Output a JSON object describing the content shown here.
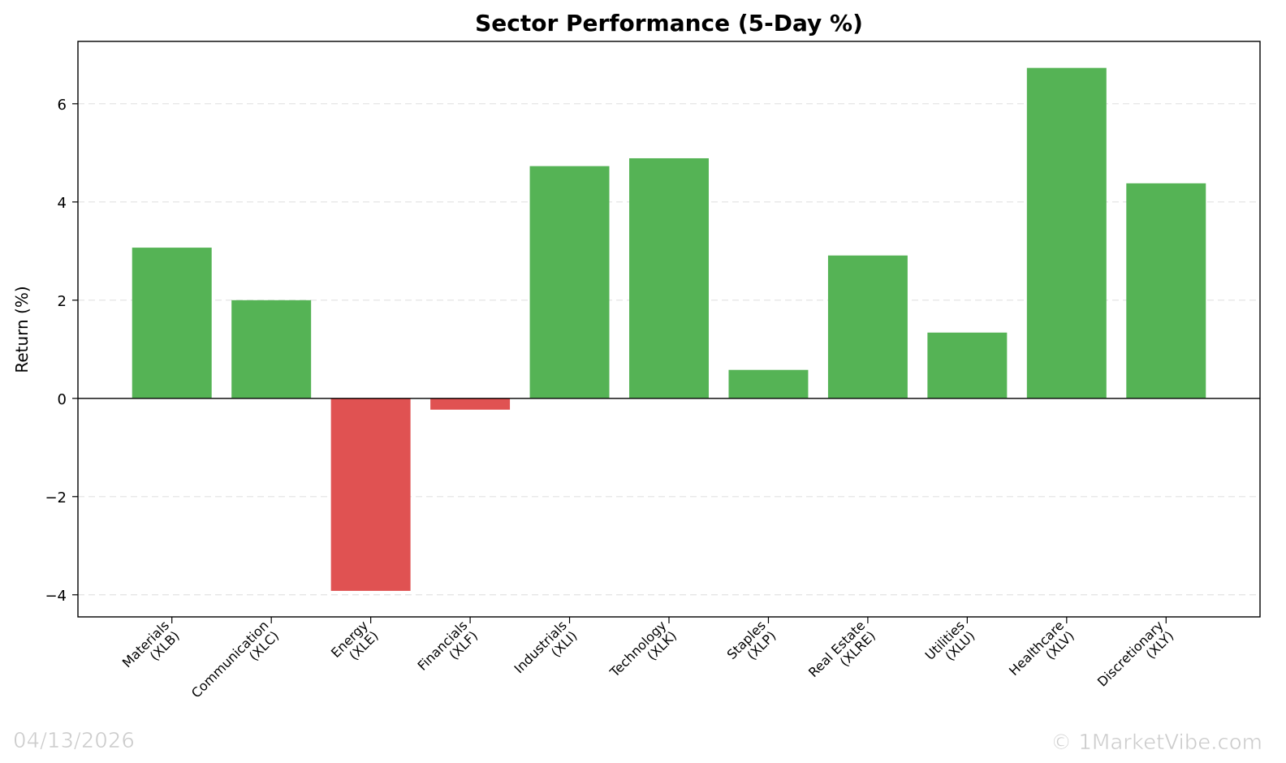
{
  "chart_data": {
    "type": "bar",
    "title": "Sector Performance (5-Day %)",
    "y_label": "Return (%)",
    "categories": [
      "Materials\n(XLB)",
      "Communication\n(XLC)",
      "Energy\n(XLE)",
      "Financials\n(XLF)",
      "Industrials\n(XLI)",
      "Technology\n(XLK)",
      "Staples\n(XLP)",
      "Real Estate\n(XLRE)",
      "Utilities\n(XLU)",
      "Healthcare\n(XLV)",
      "Discretionary\n(XLY)"
    ],
    "values": [
      3.07,
      2.0,
      -3.92,
      -0.23,
      4.73,
      4.89,
      0.58,
      2.91,
      1.34,
      6.73,
      4.38
    ],
    "positive_color": "#55b355",
    "negative_color": "#e05252",
    "ylim": [
      -4.45,
      7.27
    ],
    "yticks": [
      {
        "value": -4,
        "label": "−4"
      },
      {
        "value": -2,
        "label": "−2"
      },
      0,
      2,
      4,
      6
    ],
    "grid": true,
    "date": "04/13/2026",
    "credit": "© 1MarketVibe.com"
  }
}
